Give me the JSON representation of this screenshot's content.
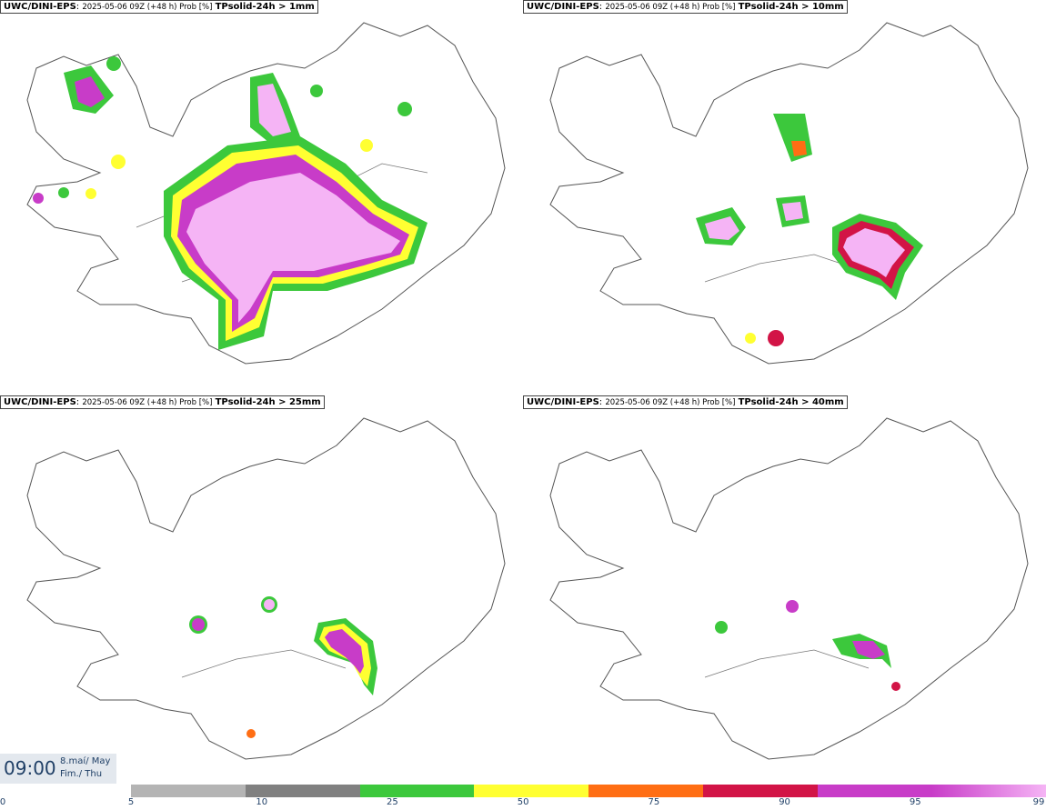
{
  "panels": [
    {
      "model": "UWC/DINI-EPS",
      "info": "2025-05-06 09Z (+48 h) Prob [%]",
      "variable": "TPsolid-24h > 1mm"
    },
    {
      "model": "UWC/DINI-EPS",
      "info": "2025-05-06 09Z (+48 h) Prob [%]",
      "variable": "TPsolid-24h > 10mm"
    },
    {
      "model": "UWC/DINI-EPS",
      "info": "2025-05-06 09Z (+48 h) Prob [%]",
      "variable": "TPsolid-24h > 25mm"
    },
    {
      "model": "UWC/DINI-EPS",
      "info": "2025-05-06 09Z (+48 h) Prob [%]",
      "variable": "TPsolid-24h > 40mm"
    }
  ],
  "valid_time": {
    "time": "09:00",
    "date_line1": "8.maí/ May",
    "date_line2": "Fim./ Thu"
  },
  "colorbar": {
    "ticks": [
      "0",
      "5",
      "10",
      "25",
      "50",
      "75",
      "90",
      "95",
      "99"
    ],
    "colors": [
      "#ffffff",
      "#b4b4b4",
      "#808080",
      "#3cc83c",
      "#ffff32",
      "#ff6e14",
      "#d21446",
      "#c83cc8",
      "#f5b4f5"
    ]
  },
  "colors": {
    "outline": "#555555",
    "text": "#1f3f66"
  }
}
